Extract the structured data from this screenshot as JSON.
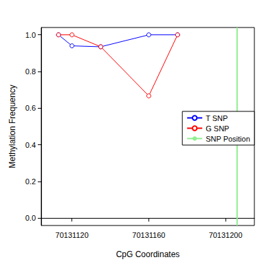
{
  "chart_data": {
    "type": "line",
    "x_label": "CpG Coordinates",
    "y_label": "Methylation Frequency",
    "x": [
      70131113,
      70131120,
      70131135,
      70131160,
      70131175
    ],
    "series": [
      {
        "name": "T SNP",
        "color": "#0000ff",
        "values": [
          1.0,
          0.94,
          0.935,
          1.0,
          1.0
        ],
        "marker": "circle_open",
        "line_style": "solid"
      },
      {
        "name": "G SNP",
        "color": "#ff0000",
        "values": [
          1.0,
          1.0,
          0.935,
          0.667,
          1.0
        ],
        "marker": "circle_open",
        "line_style": "solid"
      }
    ],
    "vlines": [
      {
        "name": "SNP Position",
        "color": "#90ee90",
        "value": 70131206
      }
    ],
    "xlim": [
      70131104,
      70131215
    ],
    "xticks": [
      70131120,
      70131160,
      70131200
    ],
    "ylim": [
      -0.04,
      1.04
    ],
    "yticks": [
      {
        "value": 0,
        "label": "0.0"
      },
      {
        "value": 0.2,
        "label": "0.2"
      },
      {
        "value": 0.4,
        "label": "0.4"
      },
      {
        "value": 0.6,
        "label": "0.6"
      },
      {
        "value": 0.8,
        "label": "0.8"
      },
      {
        "value": 1.0,
        "label": "1.0"
      }
    ],
    "legend": "right",
    "grid": false
  }
}
